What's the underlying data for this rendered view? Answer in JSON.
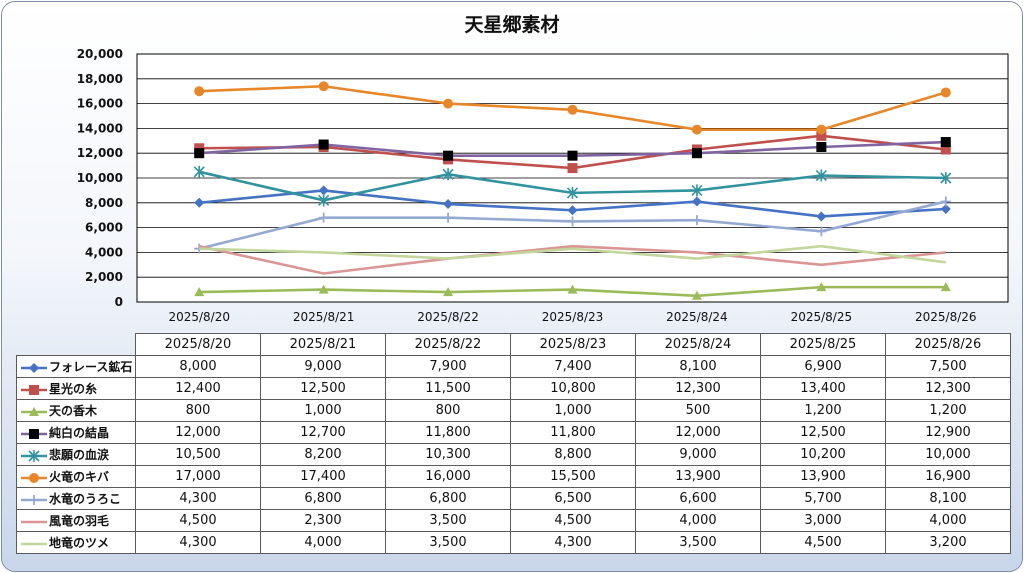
{
  "chart_data": {
    "type": "line",
    "title": "天星郷素材",
    "categories": [
      "2025/8/20",
      "2025/8/21",
      "2025/8/22",
      "2025/8/23",
      "2025/8/24",
      "2025/8/25",
      "2025/8/26"
    ],
    "ylim": [
      0,
      20000
    ],
    "yticks": [
      "0",
      "2,000",
      "4,000",
      "6,000",
      "8,000",
      "10,000",
      "12,000",
      "14,000",
      "16,000",
      "18,000",
      "20,000"
    ],
    "grid": true,
    "legend": "data-table",
    "series": [
      {
        "name": "フォレース鉱石",
        "color": "#4472c4",
        "marker": "diamond",
        "values": [
          8000,
          9000,
          7900,
          7400,
          8100,
          6900,
          7500
        ],
        "labels": [
          "8,000",
          "9,000",
          "7,900",
          "7,400",
          "8,100",
          "6,900",
          "7,500"
        ]
      },
      {
        "name": "星光の糸",
        "color": "#c0504d",
        "marker": "square",
        "values": [
          12400,
          12500,
          11500,
          10800,
          12300,
          13400,
          12300
        ],
        "labels": [
          "12,400",
          "12,500",
          "11,500",
          "10,800",
          "12,300",
          "13,400",
          "12,300"
        ]
      },
      {
        "name": "天の香木",
        "color": "#9bbb59",
        "marker": "triangle",
        "values": [
          800,
          1000,
          800,
          1000,
          500,
          1200,
          1200
        ],
        "labels": [
          "800",
          "1,000",
          "800",
          "1,000",
          "500",
          "1,200",
          "1,200"
        ]
      },
      {
        "name": "純白の結晶",
        "color": "#8064a2",
        "marker": "blacksquare",
        "values": [
          12000,
          12700,
          11800,
          11800,
          12000,
          12500,
          12900
        ],
        "labels": [
          "12,000",
          "12,700",
          "11,800",
          "11,800",
          "12,000",
          "12,500",
          "12,900"
        ]
      },
      {
        "name": "悲願の血涙",
        "color": "#31939e",
        "marker": "star",
        "values": [
          10500,
          8200,
          10300,
          8800,
          9000,
          10200,
          10000
        ],
        "labels": [
          "10,500",
          "8,200",
          "10,300",
          "8,800",
          "9,000",
          "10,200",
          "10,000"
        ]
      },
      {
        "name": "火竜のキバ",
        "color": "#e7872a",
        "marker": "circle",
        "values": [
          17000,
          17400,
          16000,
          15500,
          13900,
          13900,
          16900
        ],
        "labels": [
          "17,000",
          "17,400",
          "16,000",
          "15,500",
          "13,900",
          "13,900",
          "16,900"
        ]
      },
      {
        "name": "水竜のうろこ",
        "color": "#95aad3",
        "marker": "plus",
        "values": [
          4300,
          6800,
          6800,
          6500,
          6600,
          5700,
          8100
        ],
        "labels": [
          "4,300",
          "6,800",
          "6,800",
          "6,500",
          "6,600",
          "5,700",
          "8,100"
        ]
      },
      {
        "name": "風竜の羽毛",
        "color": "#d99694",
        "marker": "none",
        "values": [
          4500,
          2300,
          3500,
          4500,
          4000,
          3000,
          4000
        ],
        "labels": [
          "4,500",
          "2,300",
          "3,500",
          "4,500",
          "4,000",
          "3,000",
          "4,000"
        ]
      },
      {
        "name": "地竜のツメ",
        "color": "#c3d69b",
        "marker": "none",
        "values": [
          4300,
          4000,
          3500,
          4300,
          3500,
          4500,
          3200
        ],
        "labels": [
          "4,300",
          "4,000",
          "3,500",
          "4,300",
          "3,500",
          "4,500",
          "3,200"
        ]
      }
    ]
  }
}
